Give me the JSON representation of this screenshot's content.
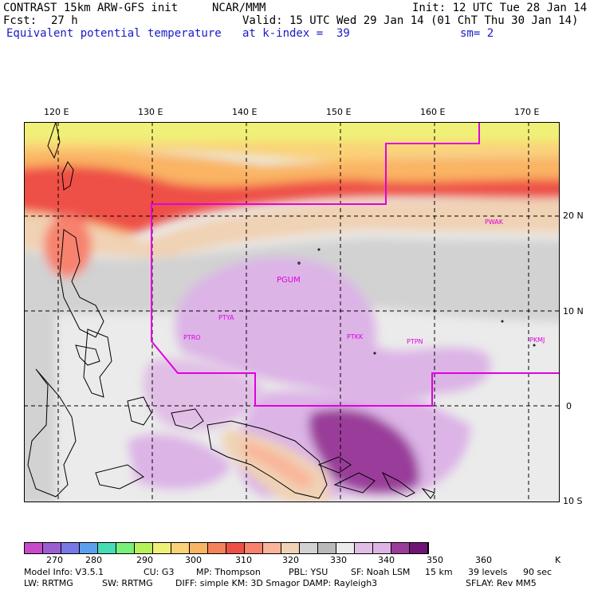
{
  "header": {
    "model_title": "CONTRAST 15km ARW-GFS init",
    "org": "NCAR/MMM",
    "init": "Init: 12 UTC Tue 28 Jan 14",
    "fcst_label": "Fcst:",
    "fcst_value": "27 h",
    "valid": "Valid: 15 UTC Wed 29 Jan 14 (01 ChT Thu 30 Jan 14)",
    "field": "Equivalent potential temperature",
    "level": "at k-index =  39",
    "smoothing": "sm= 2"
  },
  "map": {
    "lon_labels": [
      "120 E",
      "130 E",
      "140 E",
      "150 E",
      "160 E",
      "170 E"
    ],
    "lat_labels": [
      "20 N",
      "10 N",
      "0",
      "10 S"
    ],
    "stations": [
      {
        "id": "PGUM",
        "label": "PGUM"
      },
      {
        "id": "PTYA",
        "label": "PTYA"
      },
      {
        "id": "PTRO",
        "label": "PTRO"
      },
      {
        "id": "PTKK",
        "label": "PTKK"
      },
      {
        "id": "PTPN",
        "label": "PTPN"
      },
      {
        "id": "PKMJ",
        "label": "PKMJ"
      },
      {
        "id": "PWAK",
        "label": "PWAK"
      }
    ],
    "region_line_color": "#e000e0"
  },
  "colorbar": {
    "colors": [
      "#c84ac8",
      "#9a5ed2",
      "#7878e6",
      "#5aa0ee",
      "#46dcb4",
      "#78f07a",
      "#b8f05a",
      "#f0f078",
      "#fad278",
      "#fab464",
      "#f4825a",
      "#ee5046",
      "#f7826e",
      "#fab49a",
      "#f0d2b4",
      "#d2d2d2",
      "#b9b9b9",
      "#ebebeb",
      "#e1bee6",
      "#dcb4e6",
      "#9a3c9a",
      "#6e1473"
    ],
    "labels": [
      "270",
      "280",
      "290",
      "300",
      "310",
      "320",
      "330",
      "340",
      "350",
      "360",
      "K"
    ]
  },
  "footer": {
    "line1": [
      "Model Info: V3.5.1",
      "CU: G3",
      "MP: Thompson",
      "PBL: YSU",
      "SF: Noah LSM",
      "15 km",
      "39 levels",
      "90 sec"
    ],
    "line2": [
      "LW: RRTMG",
      "SW: RRTMG",
      "DIFF: simple KM: 3D Smagor DAMP: Rayleigh3",
      "SFLAY: Rev MM5"
    ]
  }
}
